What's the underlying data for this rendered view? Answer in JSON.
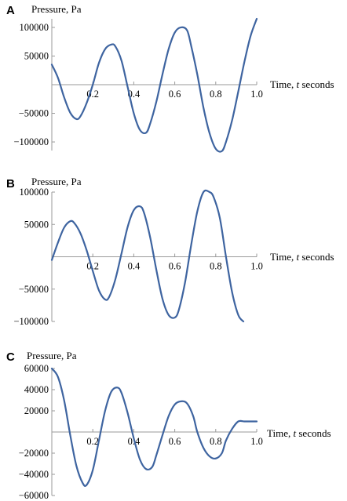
{
  "chart_data": [
    {
      "type": "line",
      "panel_label": "A",
      "ylabel": "Pressure, Pa",
      "xlabel_prefix": "Time, ",
      "xlabel_var": "t",
      "xlabel_suffix": " seconds",
      "xlim": [
        0,
        1.0
      ],
      "ylim": [
        -115000,
        115000
      ],
      "x_ticks": [
        0.2,
        0.4,
        0.6,
        0.8,
        1.0
      ],
      "x_tick_labels": [
        "0.2",
        "0.4",
        "0.6",
        "0.8",
        "1.0"
      ],
      "y_ticks": [
        100000,
        50000,
        -50000,
        -100000
      ],
      "y_tick_labels": [
        "100000",
        "50000",
        "−50000",
        "−100000"
      ],
      "grid": false,
      "series": [
        {
          "x": [
            0.0,
            0.03,
            0.06,
            0.09,
            0.12,
            0.14,
            0.17,
            0.2,
            0.23,
            0.26,
            0.29,
            0.31,
            0.34,
            0.37,
            0.4,
            0.43,
            0.46,
            0.48,
            0.51,
            0.54,
            0.57,
            0.6,
            0.63,
            0.66,
            0.68,
            0.71,
            0.74,
            0.77,
            0.8,
            0.83,
            0.85,
            0.88,
            0.91,
            0.94,
            0.97,
            1.0
          ],
          "values": [
            35000,
            12000,
            -22000,
            -49000,
            -60000,
            -55000,
            -32000,
            0,
            38000,
            62000,
            70000,
            67000,
            42000,
            -4000,
            -50000,
            -79000,
            -84000,
            -68000,
            -30000,
            18000,
            62000,
            91000,
            100000,
            95000,
            68000,
            18000,
            -40000,
            -85000,
            -112000,
            -116000,
            -100000,
            -62000,
            -12000,
            40000,
            85000,
            115000
          ]
        }
      ]
    },
    {
      "type": "line",
      "panel_label": "B",
      "ylabel": "Pressure, Pa",
      "xlabel_prefix": "Time, ",
      "xlabel_var": "t",
      "xlabel_suffix": " seconds",
      "xlim": [
        0,
        1.0
      ],
      "ylim": [
        -100000,
        100000
      ],
      "x_ticks": [
        0.2,
        0.4,
        0.6,
        0.8,
        1.0
      ],
      "x_tick_labels": [
        "0.2",
        "0.4",
        "0.6",
        "0.8",
        "1.0"
      ],
      "y_ticks": [
        100000,
        50000,
        -50000,
        -100000
      ],
      "y_tick_labels": [
        "100000",
        "50000",
        "−50000",
        "−100000"
      ],
      "grid": false,
      "series": [
        {
          "x": [
            0.0,
            0.03,
            0.06,
            0.09,
            0.11,
            0.14,
            0.17,
            0.2,
            0.23,
            0.26,
            0.28,
            0.31,
            0.34,
            0.37,
            0.4,
            0.43,
            0.45,
            0.48,
            0.51,
            0.54,
            0.57,
            0.6,
            0.62,
            0.65,
            0.68,
            0.71,
            0.74,
            0.77,
            0.79,
            0.82,
            0.85,
            0.88,
            0.91,
            0.935
          ],
          "values": [
            -5000,
            22000,
            45000,
            55000,
            52000,
            36000,
            10000,
            -22000,
            -52000,
            -66000,
            -62000,
            -35000,
            5000,
            46000,
            72000,
            78000,
            68000,
            30000,
            -20000,
            -65000,
            -90000,
            -94000,
            -82000,
            -40000,
            18000,
            70000,
            100000,
            100000,
            92000,
            60000,
            0,
            -55000,
            -90000,
            -100000
          ]
        }
      ]
    },
    {
      "type": "line",
      "panel_label": "C",
      "ylabel": "Pressure, Pa",
      "xlabel_prefix": "Time, ",
      "xlabel_var": "t",
      "xlabel_suffix": " seconds",
      "xlim": [
        0,
        1.0
      ],
      "ylim": [
        -60000,
        60000
      ],
      "x_ticks": [
        0.2,
        0.4,
        0.6,
        0.8,
        1.0
      ],
      "x_tick_labels": [
        "0.2",
        "0.4",
        "0.6",
        "0.8",
        "1.0"
      ],
      "y_ticks": [
        60000,
        40000,
        20000,
        -20000,
        -40000,
        -60000
      ],
      "y_tick_labels": [
        "60000",
        "40000",
        "20000",
        "−20000",
        "−40000",
        "−60000"
      ],
      "grid": false,
      "series": [
        {
          "x": [
            0.0,
            0.03,
            0.06,
            0.09,
            0.12,
            0.15,
            0.17,
            0.2,
            0.23,
            0.26,
            0.29,
            0.32,
            0.34,
            0.37,
            0.4,
            0.43,
            0.46,
            0.49,
            0.51,
            0.54,
            0.57,
            0.6,
            0.63,
            0.66,
            0.69,
            0.71,
            0.74,
            0.77,
            0.8,
            0.83,
            0.85,
            0.88,
            0.91,
            0.94,
            0.97,
            1.0
          ],
          "values": [
            60000,
            52000,
            30000,
            -3000,
            -32000,
            -48000,
            -50000,
            -36000,
            -8000,
            20000,
            38000,
            42000,
            37000,
            18000,
            -6000,
            -26000,
            -35000,
            -33000,
            -22000,
            -3000,
            15000,
            26000,
            29000,
            27000,
            15000,
            0,
            -15000,
            -23000,
            -25000,
            -20000,
            -8000,
            3000,
            10000,
            10000,
            10000,
            10000
          ]
        }
      ]
    }
  ]
}
